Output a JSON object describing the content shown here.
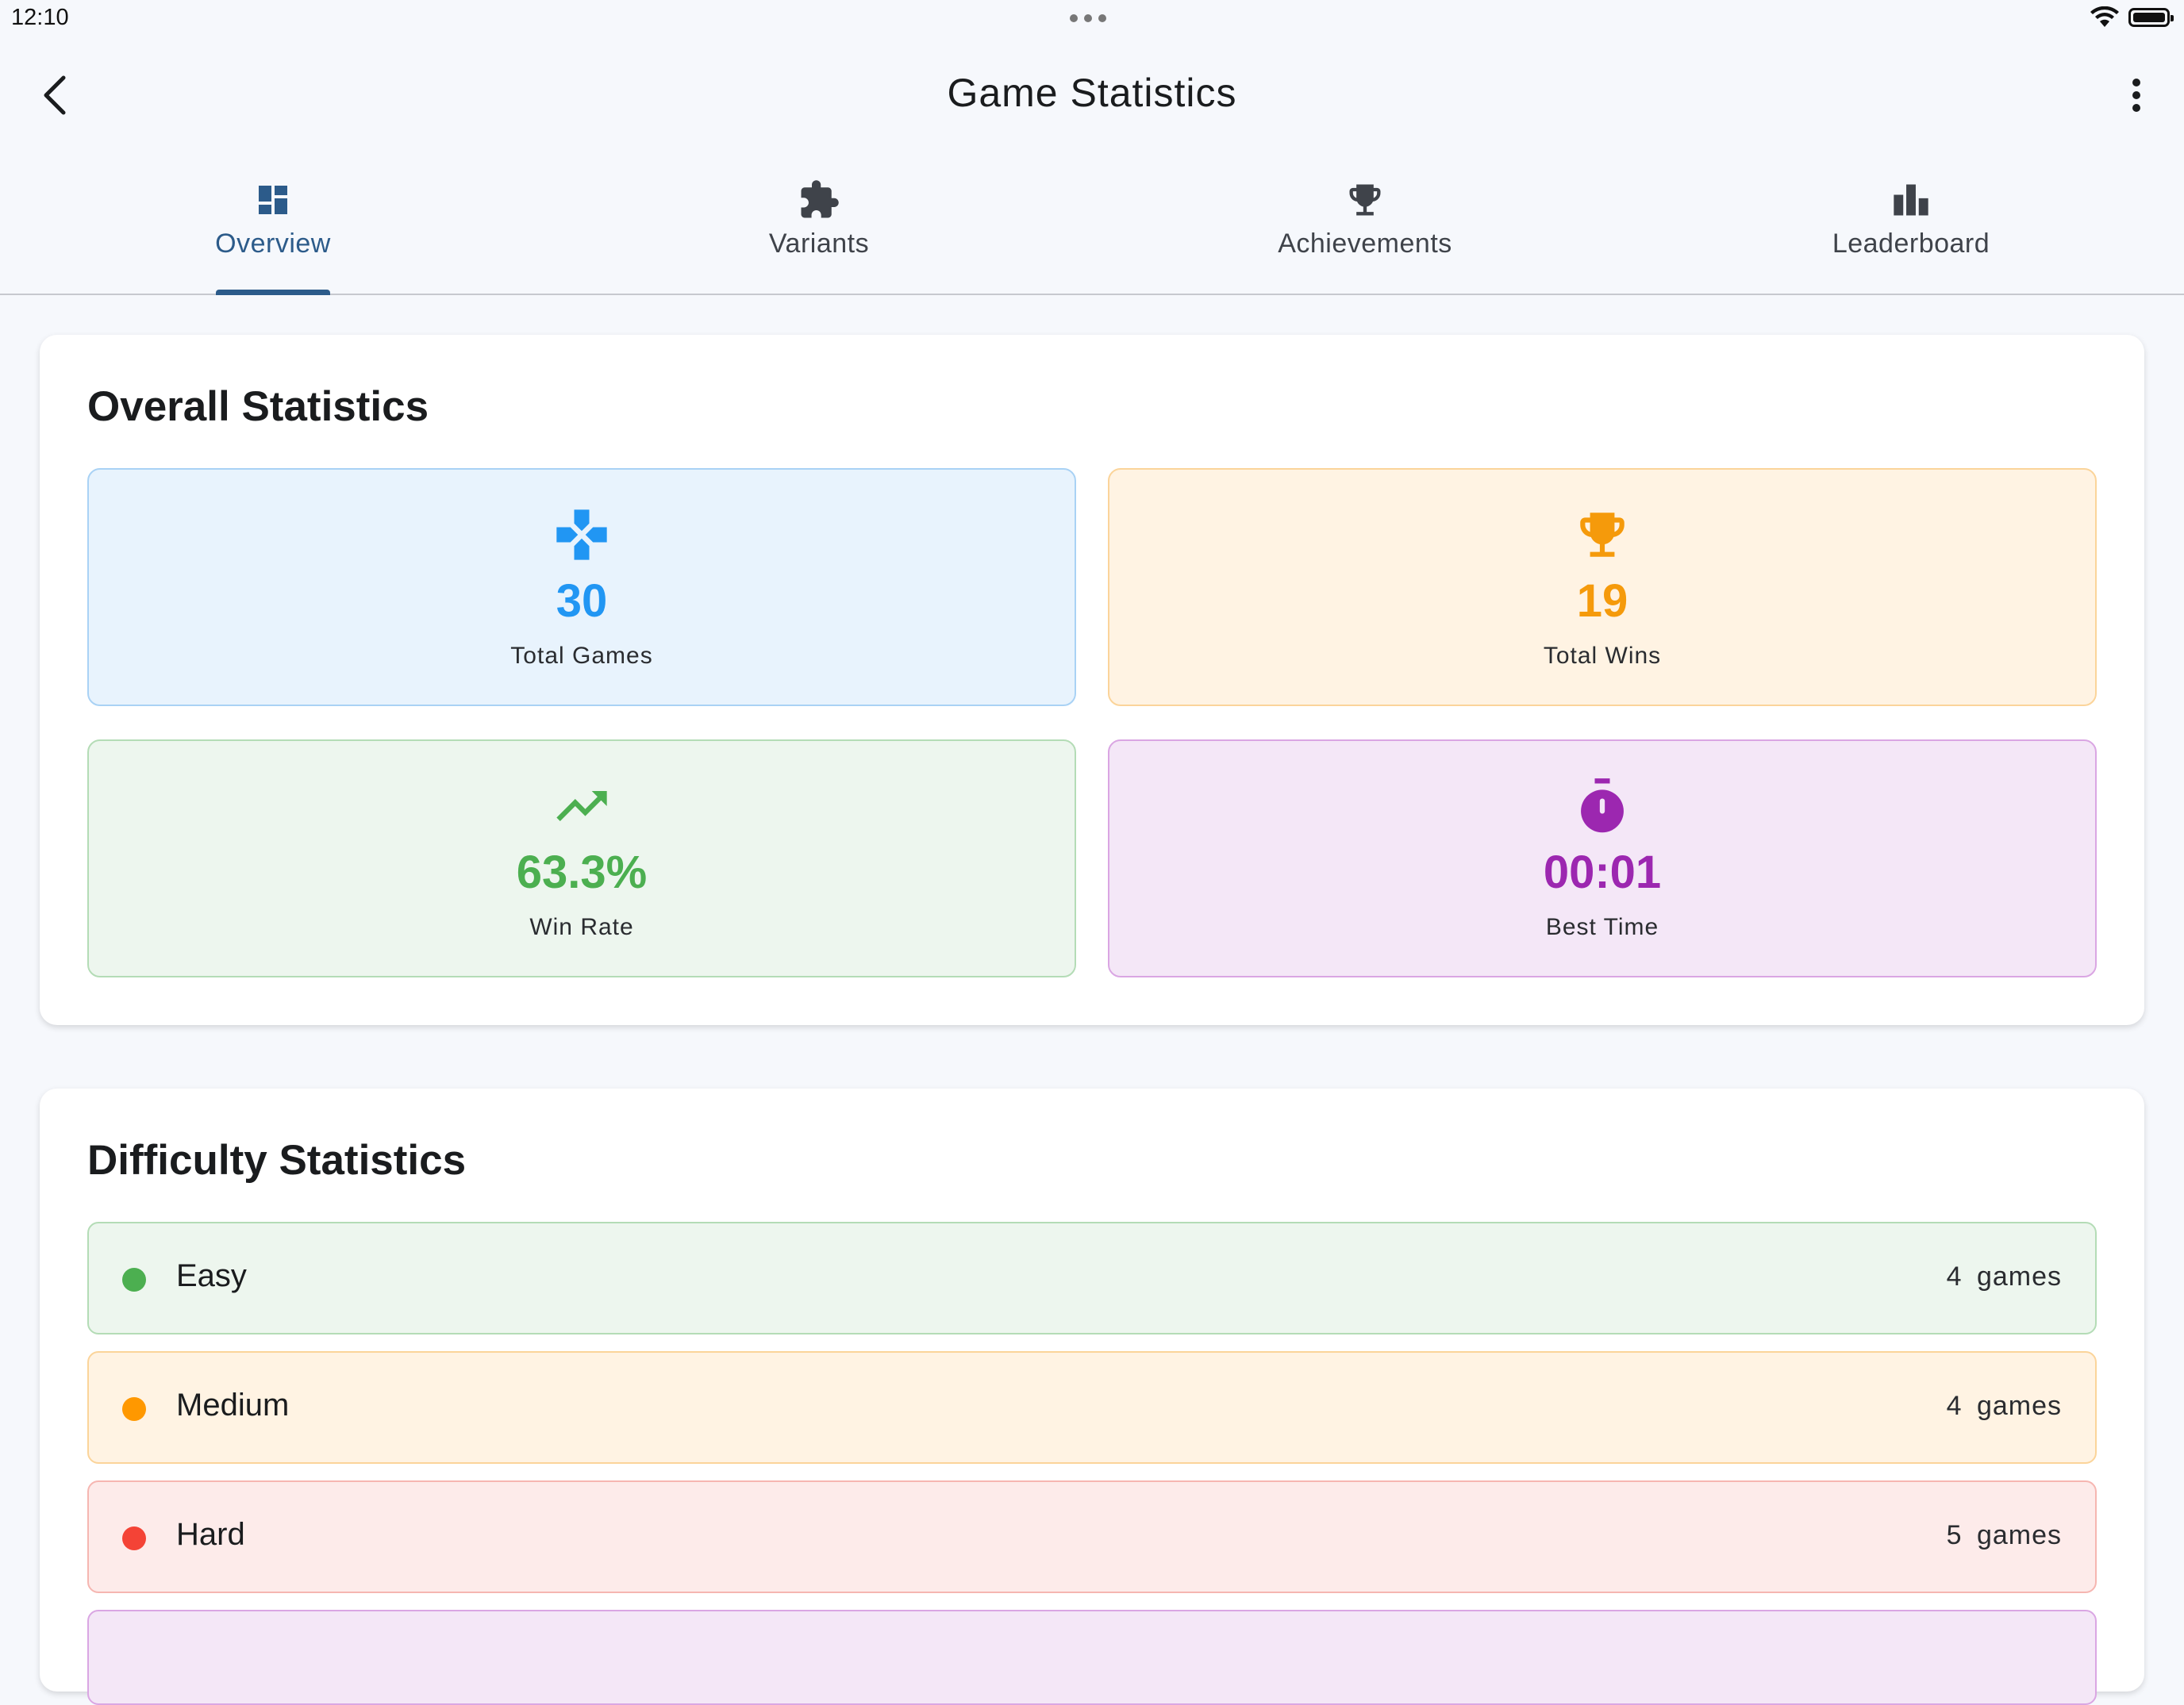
{
  "status_bar": {
    "time": "12:10"
  },
  "app_bar": {
    "title": "Game Statistics"
  },
  "tabs": [
    {
      "label": "Overview",
      "icon": "dashboard-icon",
      "active": true
    },
    {
      "label": "Variants",
      "icon": "puzzle-icon",
      "active": false
    },
    {
      "label": "Achievements",
      "icon": "trophy-icon",
      "active": false
    },
    {
      "label": "Leaderboard",
      "icon": "leaderboard-icon",
      "active": false
    }
  ],
  "overall": {
    "title": "Overall Statistics",
    "stats": [
      {
        "value": "30",
        "label": "Total Games",
        "icon": "gamepad-icon",
        "color": "#2196f3",
        "bg": "#e8f3fd",
        "border": "#a9d2f5"
      },
      {
        "value": "19",
        "label": "Total Wins",
        "icon": "trophy-icon",
        "color": "#f59a0b",
        "bg": "#fff3e3",
        "border": "#fbd49a"
      },
      {
        "value": "63.3%",
        "label": "Win Rate",
        "icon": "trending-up-icon",
        "color": "#4caf50",
        "bg": "#edf6ee",
        "border": "#b4dcb6"
      },
      {
        "value": "00:01",
        "label": "Best Time",
        "icon": "timer-icon",
        "color": "#9c27b0",
        "bg": "#f4e7f7",
        "border": "#daa6e3"
      }
    ]
  },
  "difficulty": {
    "title": "Difficulty Statistics",
    "rows": [
      {
        "name": "Easy",
        "count": "4",
        "unit": "games",
        "color": "#4caf50",
        "bg": "#edf6ee",
        "border": "#b4dcb6"
      },
      {
        "name": "Medium",
        "count": "4",
        "unit": "games",
        "color": "#ff9800",
        "bg": "#fff3e3",
        "border": "#fbd49a"
      },
      {
        "name": "Hard",
        "count": "5",
        "unit": "games",
        "color": "#f44336",
        "bg": "#fdebea",
        "border": "#f6b6b1"
      }
    ]
  }
}
